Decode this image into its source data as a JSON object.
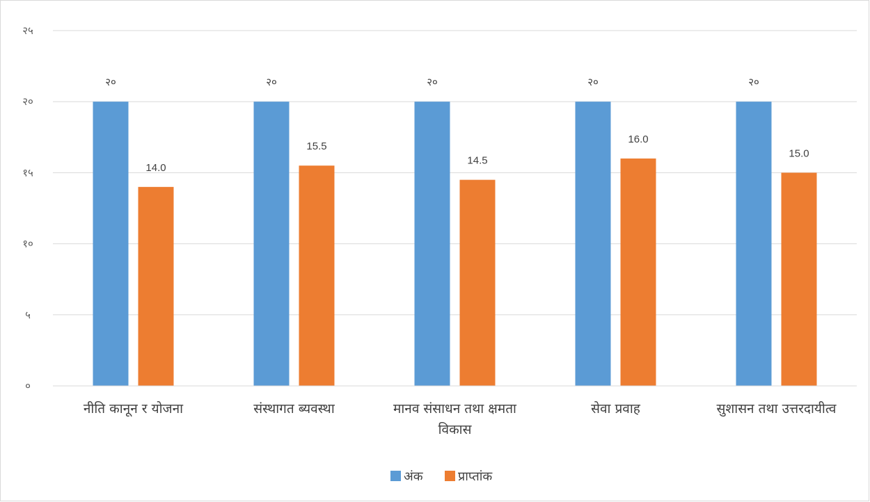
{
  "chart_data": {
    "type": "bar",
    "categories": [
      [
        "नीति कानून र योजना"
      ],
      [
        "संस्थागत ब्यवस्था"
      ],
      [
        "मानव संसाधन तथा क्षमता",
        "विकास"
      ],
      [
        "सेवा प्रवाह"
      ],
      [
        "सुशासन तथा उत्तरदायीत्व"
      ]
    ],
    "series": [
      {
        "name": "अंक",
        "color": "#5b9bd5",
        "values": [
          20,
          20,
          20,
          20,
          20
        ],
        "labels": [
          "२०",
          "२०",
          "२०",
          "२०",
          "२०"
        ]
      },
      {
        "name": "प्राप्तांक",
        "color": "#ed7d31",
        "values": [
          14.0,
          15.5,
          14.5,
          16.0,
          15.0
        ],
        "labels": [
          "14.0",
          "15.5",
          "14.5",
          "16.0",
          "15.0"
        ]
      }
    ],
    "ylim": [
      0,
      25
    ],
    "yticks": [
      0,
      5,
      10,
      15,
      20,
      25
    ],
    "ytick_labels": [
      "०",
      "५",
      "१०",
      "१५",
      "२०",
      "२५"
    ],
    "grid": true,
    "gridline_color": "#d9d9d9",
    "legend_position": "bottom"
  }
}
